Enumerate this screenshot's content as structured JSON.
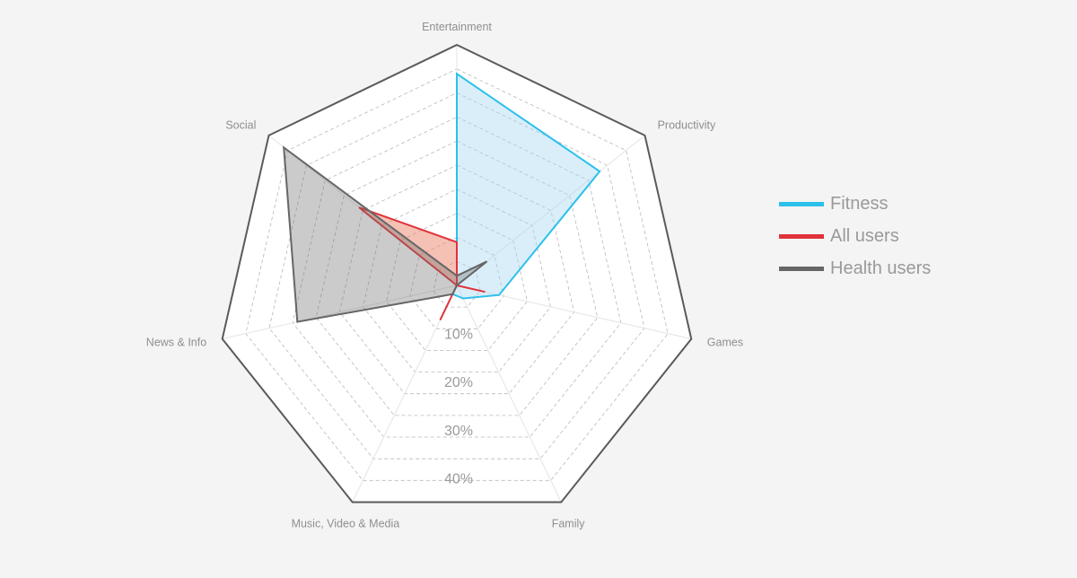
{
  "chart_data": {
    "type": "radar",
    "categories": [
      "Entertainment",
      "Productivity",
      "Games",
      "Family",
      "Music, Video & Media",
      "News & Info",
      "Social"
    ],
    "range": [
      0,
      50
    ],
    "rings": 10,
    "tick_labels": [
      "10%",
      "20%",
      "30%",
      "40%"
    ],
    "tick_values": [
      10,
      20,
      30,
      40
    ],
    "legend_position": "right",
    "series": [
      {
        "name": "Fitness",
        "color": "#2cc0ec",
        "fill": "rgba(168,214,244,0.42)",
        "values": [
          44,
          38,
          9,
          3,
          2,
          0,
          0
        ]
      },
      {
        "name": "All users",
        "color": "#e0323a",
        "fill": "rgba(236,132,108,0.5)",
        "values": [
          9,
          0,
          6,
          0,
          8,
          0,
          26
        ]
      },
      {
        "name": "Health users",
        "color": "#666666",
        "fill": "rgba(110,110,110,0.36)",
        "values": [
          2,
          8,
          0,
          0,
          2,
          34,
          46
        ]
      }
    ]
  }
}
